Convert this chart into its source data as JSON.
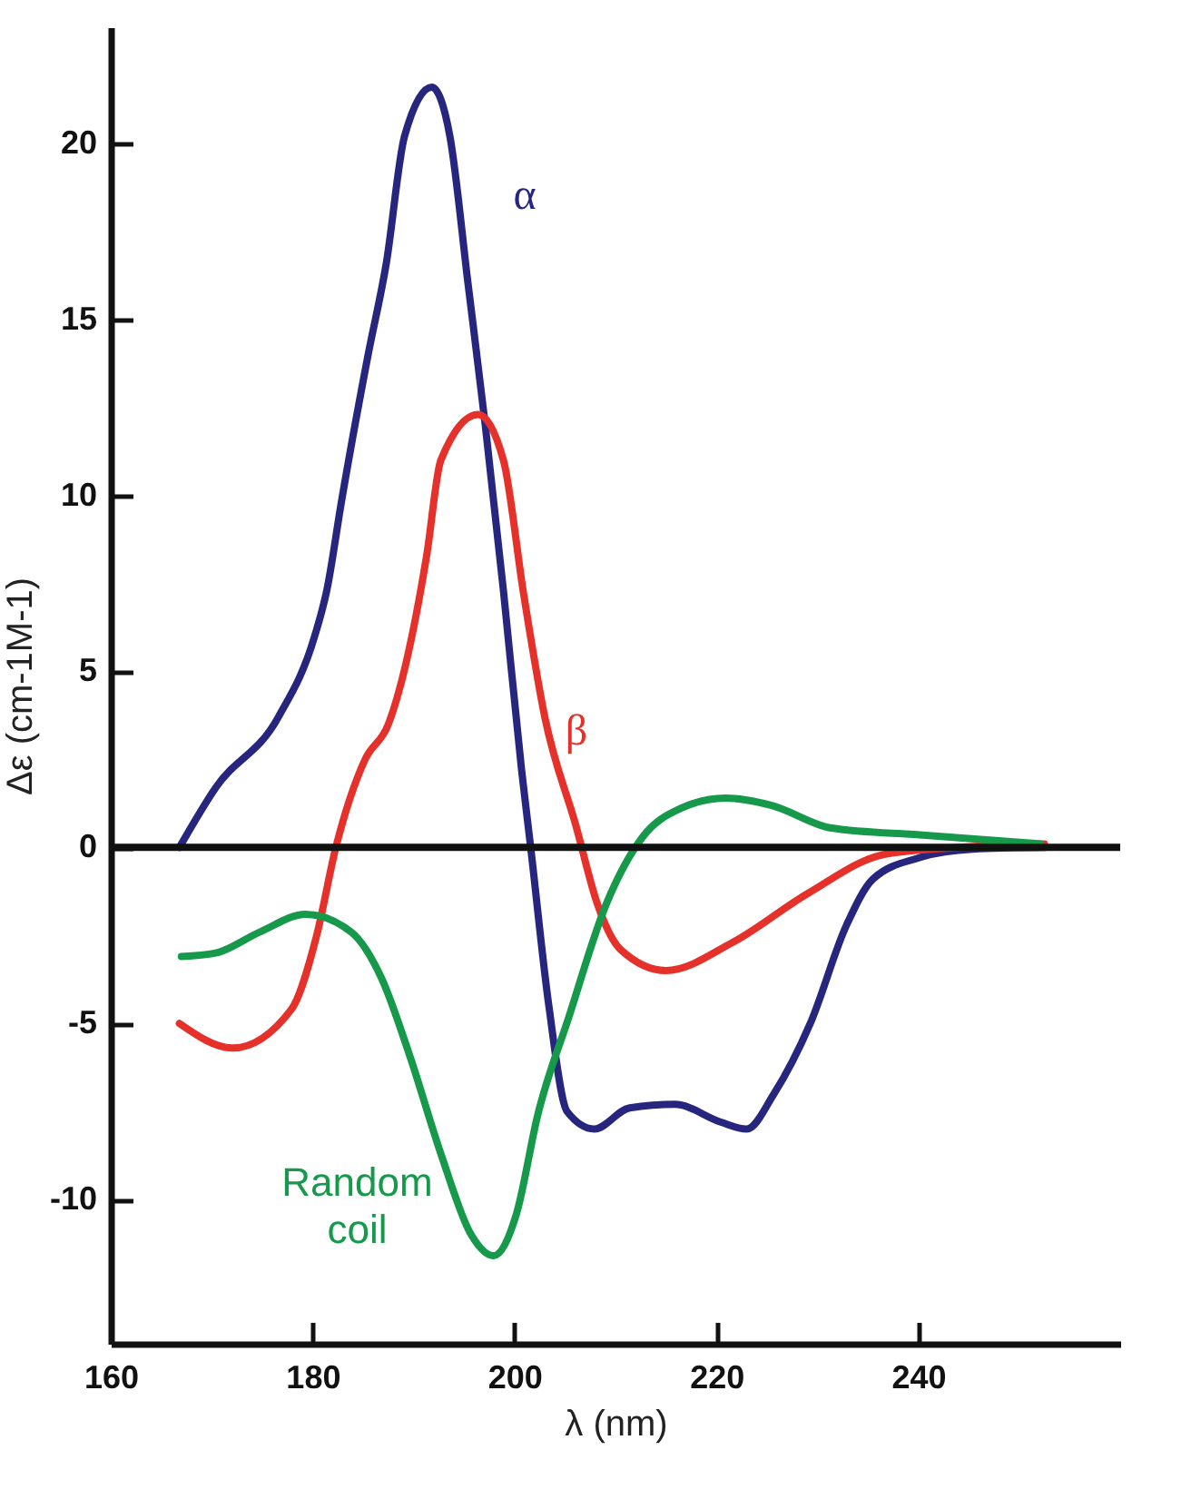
{
  "chart_data": {
    "type": "line",
    "xlabel": "λ (nm)",
    "ylabel": "Δε (cm-1M-1)",
    "xlim": [
      160,
      260
    ],
    "ylim": [
      -14.1,
      23.3
    ],
    "xticks": [
      160,
      180,
      200,
      220,
      240
    ],
    "yticks": [
      -10,
      -5,
      0,
      5,
      10,
      15,
      20
    ],
    "grid": false,
    "marker": "none",
    "line_style": "solid",
    "ref_lines": [
      {
        "axis": "y",
        "value": 0,
        "color": "#111111"
      }
    ],
    "series": [
      {
        "name": "α",
        "color": "#27267f",
        "x": [
          166.8,
          170.4,
          176.6,
          180.2,
          181.4,
          182.9,
          185.5,
          187.3,
          189.1,
          191.8,
          193.6,
          195.4,
          197.1,
          198.9,
          200.7,
          201.6,
          203.4,
          205.2,
          207.9,
          211.4,
          215.9,
          220.4,
          223,
          225.7,
          229.3,
          232.9,
          235.5,
          240,
          245.4,
          252.5
        ],
        "values": [
          0,
          1.7,
          3.7,
          6,
          7.3,
          9.9,
          14,
          16.6,
          20.2,
          21.6,
          20.2,
          16,
          12,
          7.3,
          2.2,
          0,
          -4.5,
          -7.5,
          -8,
          -7.4,
          -7.3,
          -7.8,
          -8,
          -7,
          -5,
          -2.2,
          -0.9,
          -0.3,
          -0.05,
          0
        ]
      },
      {
        "name": "β",
        "color": "#e5312a",
        "x": [
          166.8,
          172.1,
          177.9,
          180.4,
          182.3,
          185.2,
          187.5,
          191.3,
          192.7,
          196.4,
          198.9,
          200.9,
          203,
          206.1,
          208.2,
          210.5,
          215,
          221.6,
          229.1,
          236.6,
          244,
          252.5
        ],
        "values": [
          -5,
          -5.7,
          -4.6,
          -2.5,
          0,
          2.5,
          3.5,
          8.3,
          11,
          12.3,
          11,
          7.2,
          3.7,
          0.6,
          -1.6,
          -2.9,
          -3.5,
          -2.7,
          -1.3,
          -0.2,
          0,
          0.1
        ]
      },
      {
        "name": "Random coil",
        "color": "#16994a",
        "x": [
          167,
          170.4,
          174.8,
          179.3,
          183.8,
          186.8,
          189.6,
          192.7,
          195.7,
          197.9,
          200.2,
          202.3,
          205.4,
          209.1,
          212.7,
          216.4,
          220.9,
          225.4,
          231.4,
          240.4,
          252.1
        ],
        "values": [
          -3.1,
          -3,
          -2.4,
          -1.9,
          -2.4,
          -3.7,
          -5.9,
          -8.7,
          -11,
          -11.6,
          -10.4,
          -7.6,
          -4.8,
          -1.6,
          0.3,
          1.1,
          1.4,
          1.2,
          0.55,
          0.35,
          0.1
        ]
      }
    ]
  }
}
